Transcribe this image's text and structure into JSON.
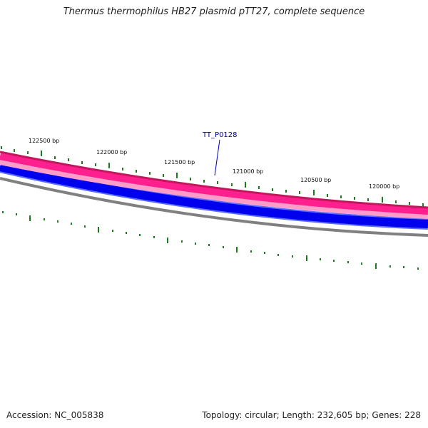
{
  "title": "Thermus thermophilus HB27 plasmid pTT27, complete sequence",
  "footer": {
    "accession": "Accession: NC_005838",
    "summary": "Topology: circular; Length: 232,605 bp; Genes: 228"
  },
  "gene_label": {
    "text": "TT_P0128",
    "color": "#0000cc"
  },
  "position_labels": [
    "122500 bp",
    "122000 bp",
    "121500 bp",
    "121000 bp",
    "120500 bp",
    "120000 bp"
  ],
  "colors": {
    "forward_track_outer": "#c2185b",
    "forward_track_inner": "#ff1f8f",
    "forward_track_light": "#ff9cc7",
    "reverse_track": "#0000ee",
    "reverse_track_edge": "#5b6cff",
    "backbone": "#808080",
    "ticks": "#1f7a1f"
  }
}
